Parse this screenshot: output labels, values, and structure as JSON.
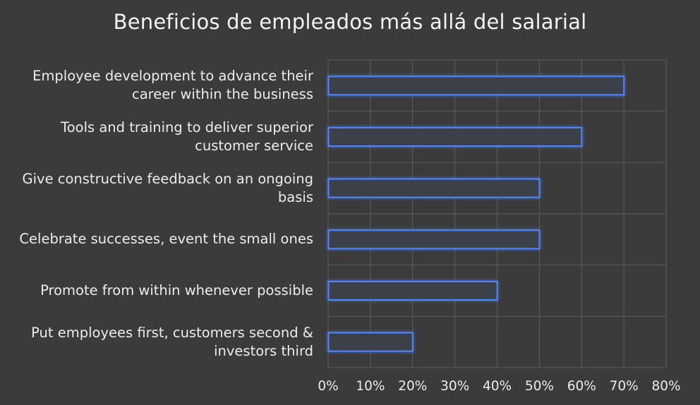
{
  "chart_data": {
    "type": "bar",
    "orientation": "horizontal",
    "title": "Beneficios de empleados más allá del salarial",
    "categories": [
      "Employee development to advance their career within the business",
      "Tools and training to deliver superior customer service",
      "Give constructive feedback on an ongoing basis",
      "Celebrate successes, event the small ones",
      "Promote from within whenever possible",
      "Put employees first, customers second & investors third"
    ],
    "values": [
      0.7,
      0.6,
      0.5,
      0.5,
      0.4,
      0.2
    ],
    "xlim": [
      0,
      0.8
    ],
    "xticks": [
      "0%",
      "10%",
      "20%",
      "30%",
      "40%",
      "50%",
      "60%",
      "70%",
      "80%"
    ],
    "grid": true,
    "colors": {
      "background": "#3b3b3b",
      "bar_fill": "#3a3f4a",
      "bar_stroke": "#4f86ff",
      "grid": "#5d5d5d",
      "text": "#ececec"
    }
  }
}
